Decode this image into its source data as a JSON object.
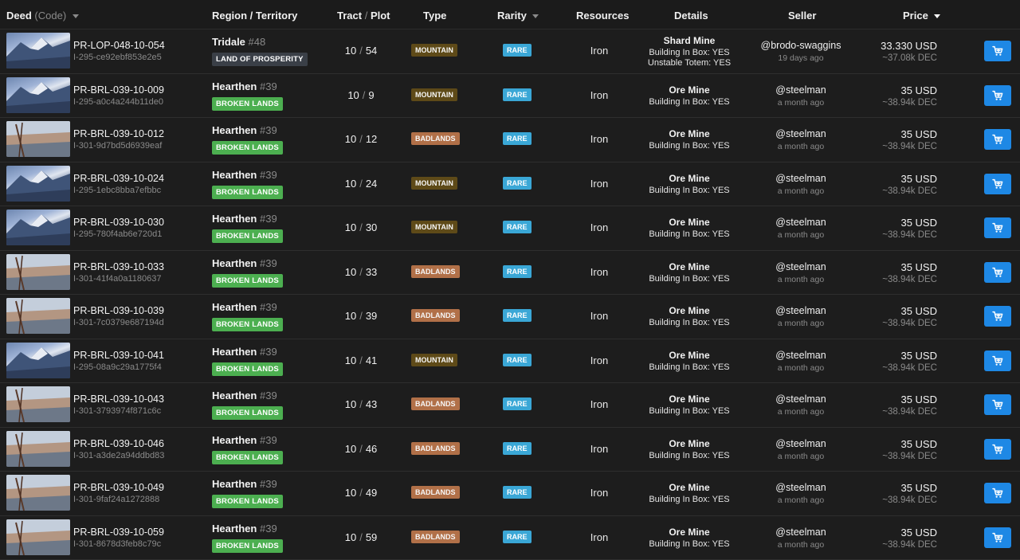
{
  "header": {
    "deed": "Deed",
    "code": "(Code)",
    "region": "Region / Territory",
    "tract": "Tract",
    "tract_sep": "/",
    "plot": "Plot",
    "type": "Type",
    "rarity": "Rarity",
    "resources": "Resources",
    "details": "Details",
    "seller": "Seller",
    "price": "Price"
  },
  "colors": {
    "green_tag": "#4caf50",
    "grey_tag": "#3a3f47",
    "mountain": "#5e4a18",
    "badlands": "#b17048",
    "rare": "#3aa7d6",
    "cart_button": "#1e88e5"
  },
  "rows": [
    {
      "image": "mountain",
      "code": "PR-LOP-048-10-054",
      "uid": "I-295-ce92ebf853e2e5",
      "region": "Tridale",
      "region_num": "#48",
      "territory": "LAND OF PROSPERITY",
      "territory_style": "grey",
      "tract": "10",
      "plot": "54",
      "type": "MOUNTAIN",
      "rarity": "RARE",
      "resource": "Iron",
      "detail_title": "Shard Mine",
      "detail_lines": [
        "Building In Box: YES",
        "Unstable Totem: YES"
      ],
      "seller": "@brodo-swaggins",
      "ago": "19 days ago",
      "price": "33.330 USD",
      "dec": "~37.08k DEC"
    },
    {
      "image": "mountain",
      "code": "PR-BRL-039-10-009",
      "uid": "I-295-a0c4a244b11de0",
      "region": "Hearthen",
      "region_num": "#39",
      "territory": "BROKEN LANDS",
      "territory_style": "green",
      "tract": "10",
      "plot": "9",
      "type": "MOUNTAIN",
      "rarity": "RARE",
      "resource": "Iron",
      "detail_title": "Ore Mine",
      "detail_lines": [
        "Building In Box: YES"
      ],
      "seller": "@steelman",
      "ago": "a month ago",
      "price": "35 USD",
      "dec": "~38.94k DEC"
    },
    {
      "image": "badlands",
      "code": "PR-BRL-039-10-012",
      "uid": "I-301-9d7bd5d6939eaf",
      "region": "Hearthen",
      "region_num": "#39",
      "territory": "BROKEN LANDS",
      "territory_style": "green",
      "tract": "10",
      "plot": "12",
      "type": "BADLANDS",
      "rarity": "RARE",
      "resource": "Iron",
      "detail_title": "Ore Mine",
      "detail_lines": [
        "Building In Box: YES"
      ],
      "seller": "@steelman",
      "ago": "a month ago",
      "price": "35 USD",
      "dec": "~38.94k DEC"
    },
    {
      "image": "mountain",
      "code": "PR-BRL-039-10-024",
      "uid": "I-295-1ebc8bba7efbbc",
      "region": "Hearthen",
      "region_num": "#39",
      "territory": "BROKEN LANDS",
      "territory_style": "green",
      "tract": "10",
      "plot": "24",
      "type": "MOUNTAIN",
      "rarity": "RARE",
      "resource": "Iron",
      "detail_title": "Ore Mine",
      "detail_lines": [
        "Building In Box: YES"
      ],
      "seller": "@steelman",
      "ago": "a month ago",
      "price": "35 USD",
      "dec": "~38.94k DEC"
    },
    {
      "image": "mountain",
      "code": "PR-BRL-039-10-030",
      "uid": "I-295-780f4ab6e720d1",
      "region": "Hearthen",
      "region_num": "#39",
      "territory": "BROKEN LANDS",
      "territory_style": "green",
      "tract": "10",
      "plot": "30",
      "type": "MOUNTAIN",
      "rarity": "RARE",
      "resource": "Iron",
      "detail_title": "Ore Mine",
      "detail_lines": [
        "Building In Box: YES"
      ],
      "seller": "@steelman",
      "ago": "a month ago",
      "price": "35 USD",
      "dec": "~38.94k DEC"
    },
    {
      "image": "badlands",
      "code": "PR-BRL-039-10-033",
      "uid": "I-301-41f4a0a1180637",
      "region": "Hearthen",
      "region_num": "#39",
      "territory": "BROKEN LANDS",
      "territory_style": "green",
      "tract": "10",
      "plot": "33",
      "type": "BADLANDS",
      "rarity": "RARE",
      "resource": "Iron",
      "detail_title": "Ore Mine",
      "detail_lines": [
        "Building In Box: YES"
      ],
      "seller": "@steelman",
      "ago": "a month ago",
      "price": "35 USD",
      "dec": "~38.94k DEC"
    },
    {
      "image": "badlands",
      "code": "PR-BRL-039-10-039",
      "uid": "I-301-7c0379e687194d",
      "region": "Hearthen",
      "region_num": "#39",
      "territory": "BROKEN LANDS",
      "territory_style": "green",
      "tract": "10",
      "plot": "39",
      "type": "BADLANDS",
      "rarity": "RARE",
      "resource": "Iron",
      "detail_title": "Ore Mine",
      "detail_lines": [
        "Building In Box: YES"
      ],
      "seller": "@steelman",
      "ago": "a month ago",
      "price": "35 USD",
      "dec": "~38.94k DEC"
    },
    {
      "image": "mountain",
      "code": "PR-BRL-039-10-041",
      "uid": "I-295-08a9c29a1775f4",
      "region": "Hearthen",
      "region_num": "#39",
      "territory": "BROKEN LANDS",
      "territory_style": "green",
      "tract": "10",
      "plot": "41",
      "type": "MOUNTAIN",
      "rarity": "RARE",
      "resource": "Iron",
      "detail_title": "Ore Mine",
      "detail_lines": [
        "Building In Box: YES"
      ],
      "seller": "@steelman",
      "ago": "a month ago",
      "price": "35 USD",
      "dec": "~38.94k DEC"
    },
    {
      "image": "badlands",
      "code": "PR-BRL-039-10-043",
      "uid": "I-301-3793974f871c6c",
      "region": "Hearthen",
      "region_num": "#39",
      "territory": "BROKEN LANDS",
      "territory_style": "green",
      "tract": "10",
      "plot": "43",
      "type": "BADLANDS",
      "rarity": "RARE",
      "resource": "Iron",
      "detail_title": "Ore Mine",
      "detail_lines": [
        "Building In Box: YES"
      ],
      "seller": "@steelman",
      "ago": "a month ago",
      "price": "35 USD",
      "dec": "~38.94k DEC"
    },
    {
      "image": "badlands",
      "code": "PR-BRL-039-10-046",
      "uid": "I-301-a3de2a94ddbd83",
      "region": "Hearthen",
      "region_num": "#39",
      "territory": "BROKEN LANDS",
      "territory_style": "green",
      "tract": "10",
      "plot": "46",
      "type": "BADLANDS",
      "rarity": "RARE",
      "resource": "Iron",
      "detail_title": "Ore Mine",
      "detail_lines": [
        "Building In Box: YES"
      ],
      "seller": "@steelman",
      "ago": "a month ago",
      "price": "35 USD",
      "dec": "~38.94k DEC"
    },
    {
      "image": "badlands",
      "code": "PR-BRL-039-10-049",
      "uid": "I-301-9faf24a1272888",
      "region": "Hearthen",
      "region_num": "#39",
      "territory": "BROKEN LANDS",
      "territory_style": "green",
      "tract": "10",
      "plot": "49",
      "type": "BADLANDS",
      "rarity": "RARE",
      "resource": "Iron",
      "detail_title": "Ore Mine",
      "detail_lines": [
        "Building In Box: YES"
      ],
      "seller": "@steelman",
      "ago": "a month ago",
      "price": "35 USD",
      "dec": "~38.94k DEC"
    },
    {
      "image": "badlands",
      "code": "PR-BRL-039-10-059",
      "uid": "I-301-8678d3feb8c79c",
      "region": "Hearthen",
      "region_num": "#39",
      "territory": "BROKEN LANDS",
      "territory_style": "green",
      "tract": "10",
      "plot": "59",
      "type": "BADLANDS",
      "rarity": "RARE",
      "resource": "Iron",
      "detail_title": "Ore Mine",
      "detail_lines": [
        "Building In Box: YES"
      ],
      "seller": "@steelman",
      "ago": "a month ago",
      "price": "35 USD",
      "dec": "~38.94k DEC"
    }
  ]
}
